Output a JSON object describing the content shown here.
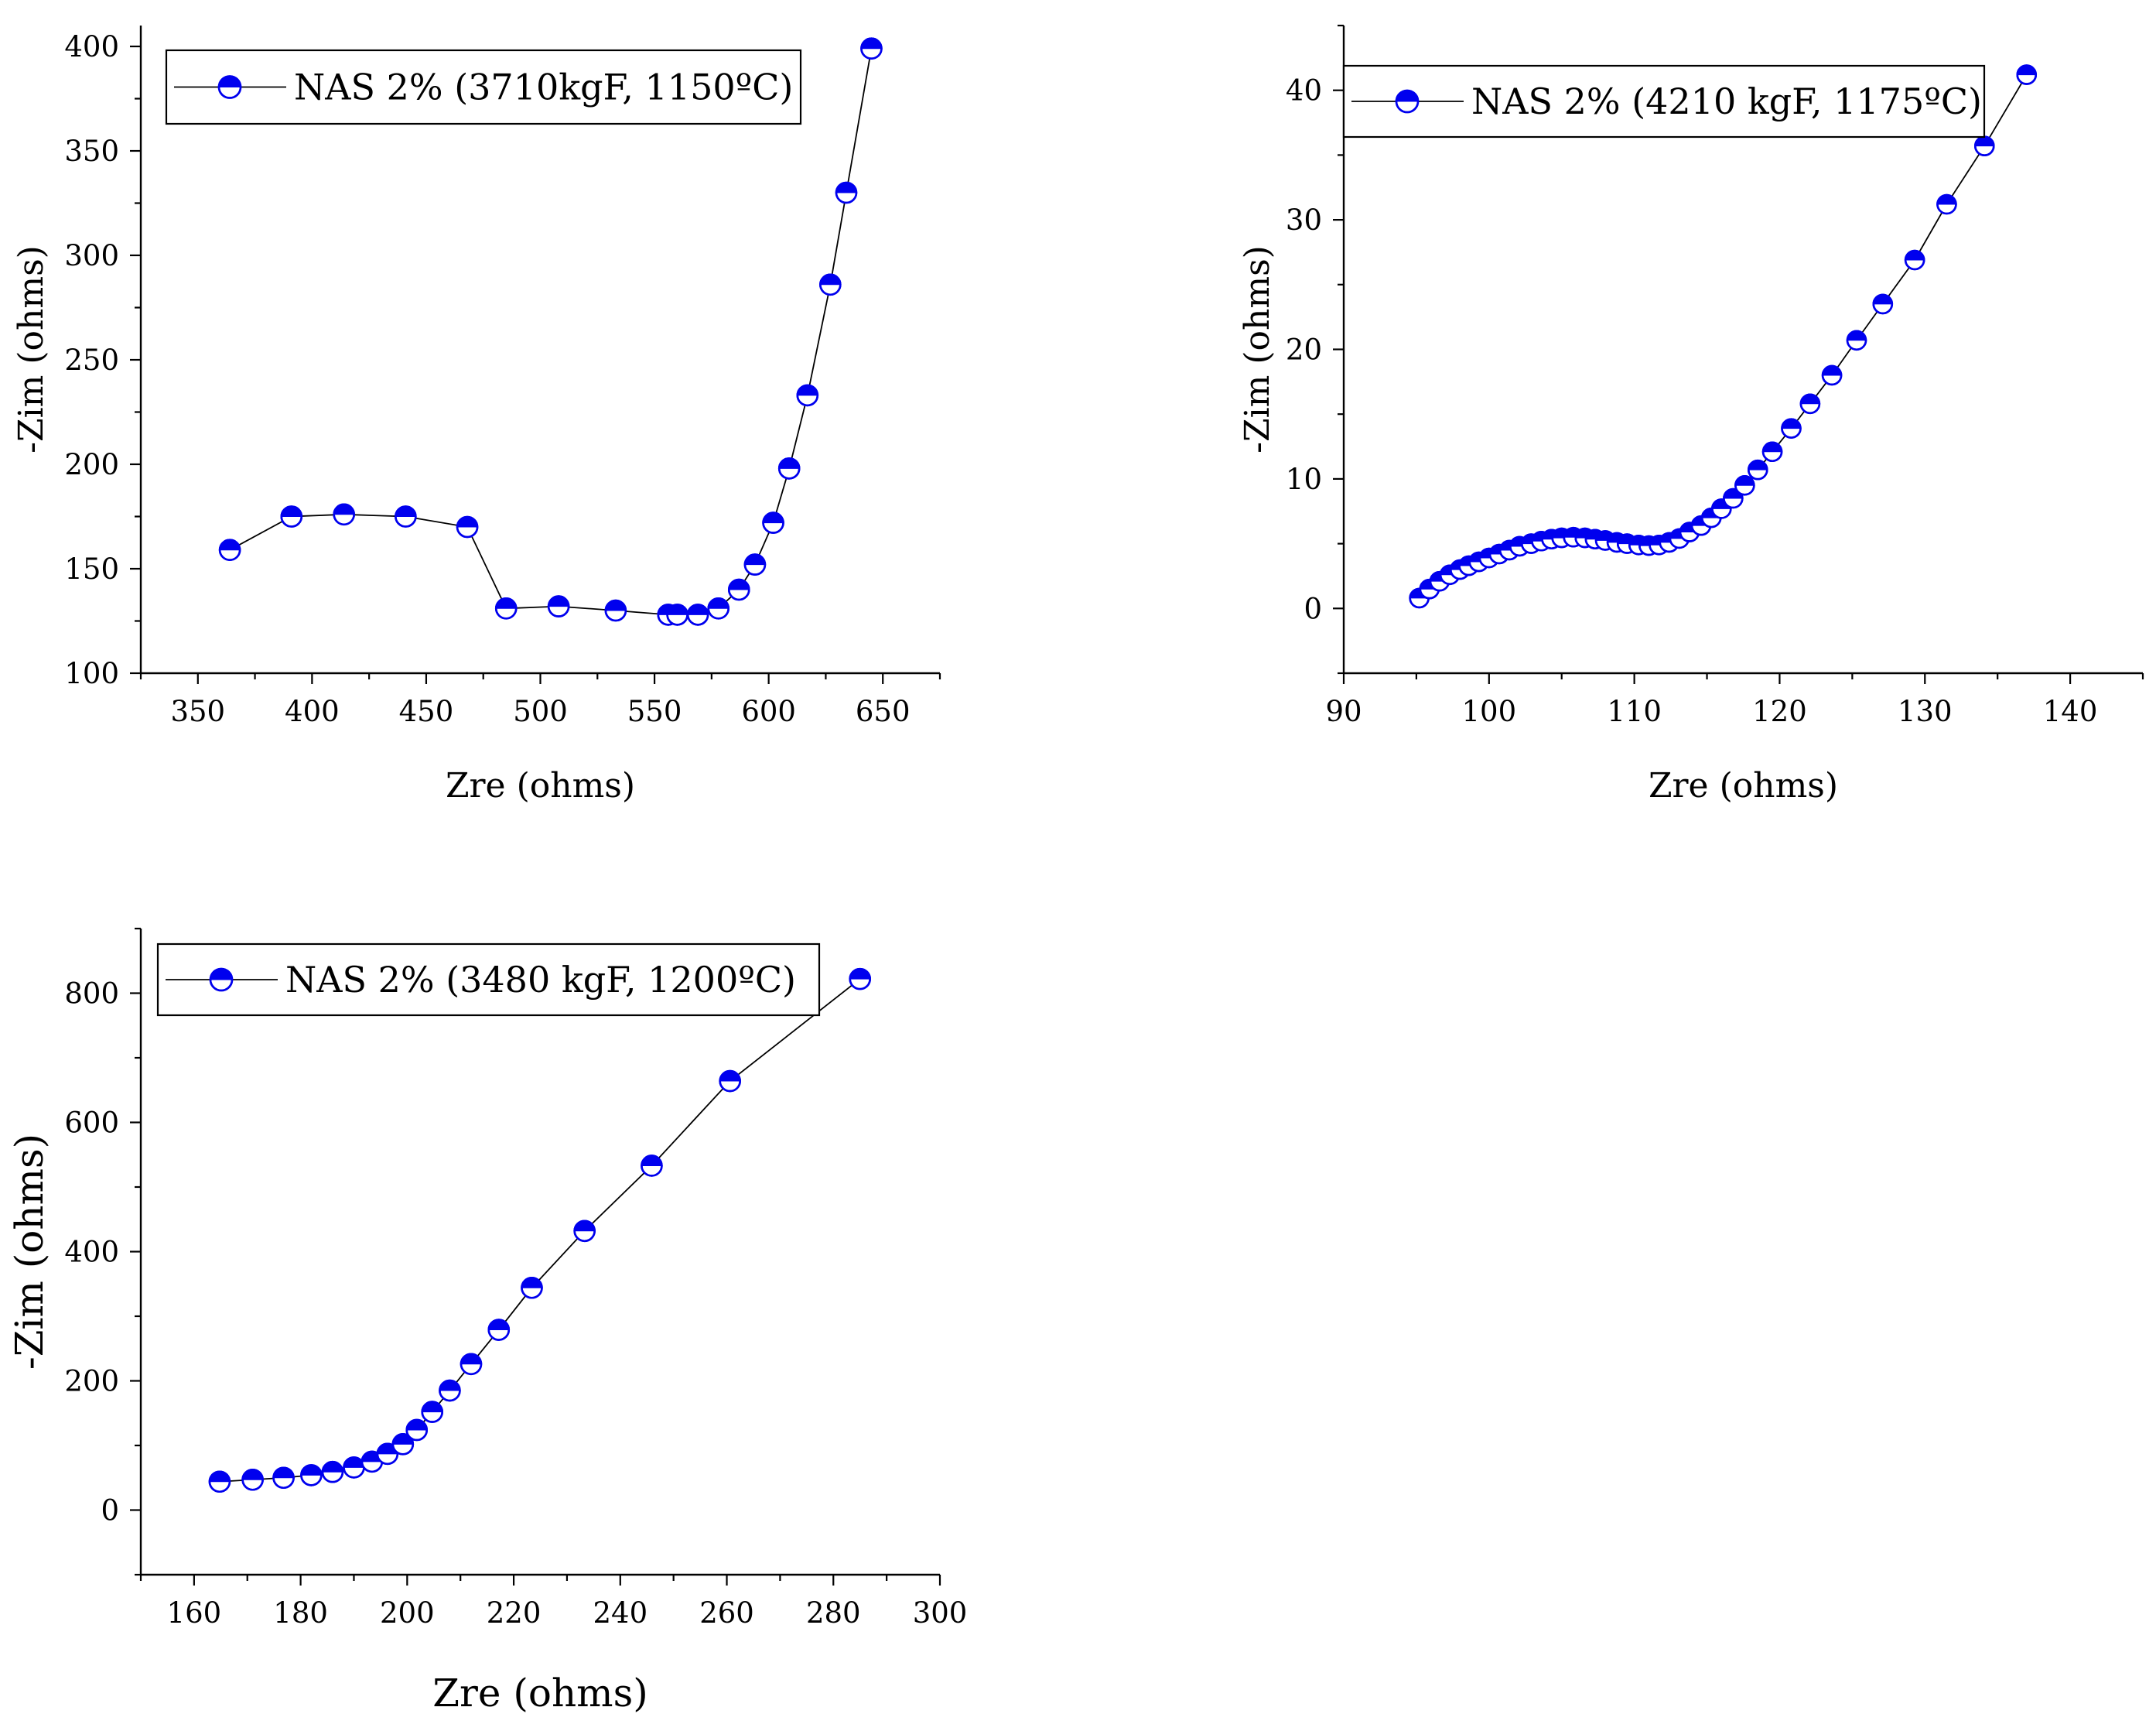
{
  "chart_data": [
    {
      "type": "scatter",
      "title": "",
      "xlabel": "Zre (ohms)",
      "ylabel": "-Zim (ohms)",
      "xlim": [
        325,
        675
      ],
      "ylim": [
        100,
        410
      ],
      "xticks": [
        350,
        400,
        450,
        500,
        550,
        600,
        650
      ],
      "yticks": [
        100,
        150,
        200,
        250,
        300,
        350,
        400
      ],
      "grid": false,
      "legend_position": "top-left",
      "series": [
        {
          "name": "NAS 2% (3710kgF, 1150ºC)",
          "color": "#0000ee",
          "x": [
            364,
            391,
            414,
            441,
            468,
            485,
            508,
            533,
            556,
            560,
            569,
            578,
            587,
            594,
            602,
            609,
            617,
            627,
            634,
            645
          ],
          "y": [
            159,
            175,
            176,
            175,
            170,
            131,
            132,
            130,
            128,
            128,
            128,
            131,
            140,
            152,
            172,
            198,
            233,
            286,
            330,
            399
          ]
        }
      ]
    },
    {
      "type": "scatter",
      "title": "",
      "xlabel": "Zre (ohms)",
      "ylabel": "-Zim (ohms)",
      "xlim": [
        90,
        145
      ],
      "ylim": [
        -5,
        45
      ],
      "xticks": [
        90,
        100,
        110,
        120,
        130,
        140
      ],
      "yticks": [
        0,
        10,
        20,
        30,
        40
      ],
      "grid": false,
      "legend_position": "top-left",
      "series": [
        {
          "name": "NAS 2% (4210 kgF, 1175ºC)",
          "color": "#0000ee",
          "x": [
            95.2,
            95.9,
            96.6,
            97.3,
            98.0,
            98.6,
            99.3,
            100.0,
            100.7,
            101.4,
            102.1,
            102.9,
            103.6,
            104.3,
            105.0,
            105.8,
            106.6,
            107.3,
            108.0,
            108.8,
            109.5,
            110.3,
            111.0,
            111.7,
            112.4,
            113.1,
            113.8,
            114.6,
            115.3,
            116.0,
            116.8,
            117.6,
            118.5,
            119.5,
            120.8,
            122.1,
            123.6,
            125.3,
            127.1,
            129.3,
            131.5,
            134.1,
            137.0
          ],
          "y": [
            0.8,
            1.5,
            2.1,
            2.6,
            3.0,
            3.3,
            3.6,
            3.9,
            4.2,
            4.5,
            4.8,
            5.0,
            5.2,
            5.35,
            5.45,
            5.5,
            5.45,
            5.35,
            5.25,
            5.1,
            5.0,
            4.9,
            4.85,
            4.9,
            5.1,
            5.4,
            5.9,
            6.4,
            7.0,
            7.7,
            8.5,
            9.5,
            10.7,
            12.1,
            13.9,
            15.8,
            18.0,
            20.7,
            23.5,
            26.9,
            31.2,
            35.7,
            41.2
          ]
        }
      ]
    },
    {
      "type": "scatter",
      "title": "",
      "xlabel": "Zre (ohms)",
      "ylabel": "-Zim (ohms)",
      "xlim": [
        150,
        300
      ],
      "ylim": [
        -100,
        900
      ],
      "xticks": [
        160,
        180,
        200,
        220,
        240,
        260,
        280,
        300
      ],
      "yticks": [
        0,
        200,
        400,
        600,
        800
      ],
      "grid": false,
      "legend_position": "top-left",
      "series": [
        {
          "name": "NAS 2% (3480 kgF, 1200ºC)",
          "color": "#0000ee",
          "x": [
            164.8,
            171.0,
            176.8,
            182.0,
            186.0,
            190.0,
            193.4,
            196.3,
            199.2,
            201.8,
            204.7,
            208.0,
            212.0,
            217.2,
            223.4,
            233.3,
            245.9,
            260.6,
            285.0
          ],
          "y": [
            44,
            47,
            50,
            54,
            59,
            66,
            75,
            87,
            102,
            124,
            152,
            185,
            226,
            279,
            344,
            432,
            533,
            664,
            822
          ]
        }
      ]
    }
  ]
}
